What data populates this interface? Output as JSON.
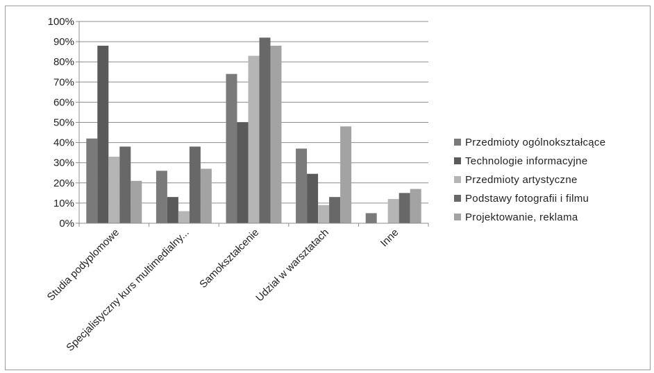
{
  "chart_data": {
    "type": "bar",
    "categories": [
      "Studia podyplomowe",
      "Specjalistyczny kurs multimedialny...",
      "Samokształcenie",
      "Udział w warsztatach",
      "Inne"
    ],
    "series": [
      {
        "name": "Przedmioty ogólnokształcące",
        "color": "#7a7a7a",
        "values": [
          42,
          26,
          74,
          37,
          5
        ]
      },
      {
        "name": "Technologie informacyjne",
        "color": "#5a5a5a",
        "values": [
          88,
          13,
          50,
          24.5,
          0
        ]
      },
      {
        "name": "Przedmioty artystyczne",
        "color": "#b5b5b5",
        "values": [
          33,
          6,
          83,
          9,
          12
        ]
      },
      {
        "name": "Podstawy fotografii i filmu",
        "color": "#686868",
        "values": [
          38,
          38,
          92,
          13,
          15
        ]
      },
      {
        "name": "Projektowanie, reklama",
        "color": "#a3a3a3",
        "values": [
          21,
          27,
          88,
          48,
          17
        ]
      }
    ],
    "ylim": [
      0,
      100
    ],
    "yticks": [
      "0%",
      "10%",
      "20%",
      "30%",
      "40%",
      "50%",
      "60%",
      "70%",
      "80%",
      "90%",
      "100%"
    ],
    "grid": true,
    "legend_position": "right"
  }
}
